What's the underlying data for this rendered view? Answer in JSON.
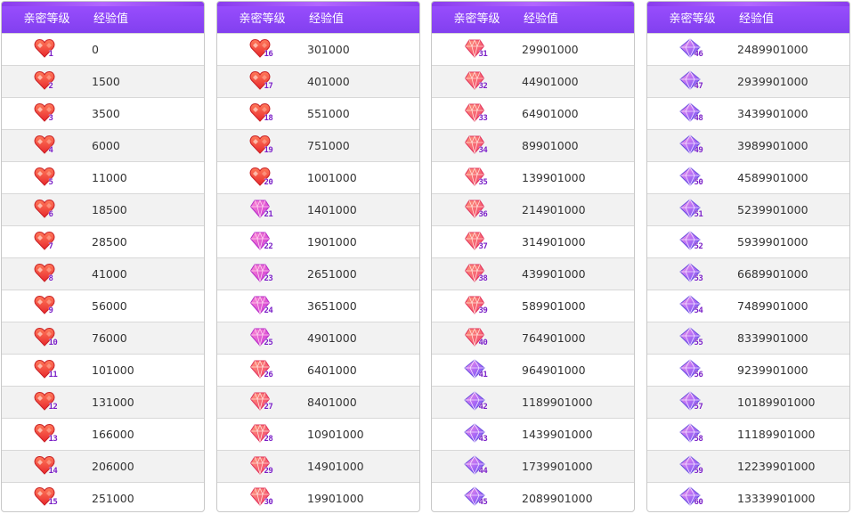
{
  "headers": {
    "level": "亲密等级",
    "exp": "经验值"
  },
  "colors": {
    "header": "#8a44f5",
    "heart_red": "#f2473e",
    "heart_pink": "#f04fb6",
    "heart_purple": "#9a5cf0",
    "level_text": "#7a1fc7"
  },
  "tables": [
    {
      "rows": [
        {
          "level": "1",
          "exp": "0",
          "icon": "heart-red-icon"
        },
        {
          "level": "2",
          "exp": "1500",
          "icon": "heart-red-icon"
        },
        {
          "level": "3",
          "exp": "3500",
          "icon": "heart-red-icon"
        },
        {
          "level": "4",
          "exp": "6000",
          "icon": "heart-red-icon"
        },
        {
          "level": "5",
          "exp": "11000",
          "icon": "heart-red-icon"
        },
        {
          "level": "6",
          "exp": "18500",
          "icon": "heart-red-icon"
        },
        {
          "level": "7",
          "exp": "28500",
          "icon": "heart-red-icon"
        },
        {
          "level": "8",
          "exp": "41000",
          "icon": "heart-red-icon"
        },
        {
          "level": "9",
          "exp": "56000",
          "icon": "heart-red-icon"
        },
        {
          "level": "10",
          "exp": "76000",
          "icon": "heart-red-icon"
        },
        {
          "level": "11",
          "exp": "101000",
          "icon": "heart-red-icon"
        },
        {
          "level": "12",
          "exp": "131000",
          "icon": "heart-red-icon"
        },
        {
          "level": "13",
          "exp": "166000",
          "icon": "heart-red-icon"
        },
        {
          "level": "14",
          "exp": "206000",
          "icon": "heart-red-icon"
        },
        {
          "level": "15",
          "exp": "251000",
          "icon": "heart-red-icon"
        }
      ]
    },
    {
      "rows": [
        {
          "level": "16",
          "exp": "301000",
          "icon": "heart-red-icon"
        },
        {
          "level": "17",
          "exp": "401000",
          "icon": "heart-red-icon"
        },
        {
          "level": "18",
          "exp": "551000",
          "icon": "heart-red-icon"
        },
        {
          "level": "19",
          "exp": "751000",
          "icon": "heart-red-icon"
        },
        {
          "level": "20",
          "exp": "1001000",
          "icon": "heart-red-icon"
        },
        {
          "level": "21",
          "exp": "1401000",
          "icon": "gem-pink-icon"
        },
        {
          "level": "22",
          "exp": "1901000",
          "icon": "gem-pink-icon"
        },
        {
          "level": "23",
          "exp": "2651000",
          "icon": "gem-pink-icon"
        },
        {
          "level": "24",
          "exp": "3651000",
          "icon": "gem-pink-icon"
        },
        {
          "level": "25",
          "exp": "4901000",
          "icon": "gem-pink-icon"
        },
        {
          "level": "26",
          "exp": "6401000",
          "icon": "gem-red-icon"
        },
        {
          "level": "27",
          "exp": "8401000",
          "icon": "gem-red-icon"
        },
        {
          "level": "28",
          "exp": "10901000",
          "icon": "gem-red-icon"
        },
        {
          "level": "29",
          "exp": "14901000",
          "icon": "gem-red-icon"
        },
        {
          "level": "30",
          "exp": "19901000",
          "icon": "gem-red-icon"
        }
      ]
    },
    {
      "rows": [
        {
          "level": "31",
          "exp": "29901000",
          "icon": "gem-red-icon"
        },
        {
          "level": "32",
          "exp": "44901000",
          "icon": "gem-red-icon"
        },
        {
          "level": "33",
          "exp": "64901000",
          "icon": "gem-red-icon"
        },
        {
          "level": "34",
          "exp": "89901000",
          "icon": "gem-red-icon"
        },
        {
          "level": "35",
          "exp": "139901000",
          "icon": "gem-red-icon"
        },
        {
          "level": "36",
          "exp": "214901000",
          "icon": "gem-red-icon"
        },
        {
          "level": "37",
          "exp": "314901000",
          "icon": "gem-red-icon"
        },
        {
          "level": "38",
          "exp": "439901000",
          "icon": "gem-red-icon"
        },
        {
          "level": "39",
          "exp": "589901000",
          "icon": "gem-red-icon"
        },
        {
          "level": "40",
          "exp": "764901000",
          "icon": "gem-red-icon"
        },
        {
          "level": "41",
          "exp": "964901000",
          "icon": "gem-purple-icon"
        },
        {
          "level": "42",
          "exp": "1189901000",
          "icon": "gem-purple-icon"
        },
        {
          "level": "43",
          "exp": "1439901000",
          "icon": "gem-purple-icon"
        },
        {
          "level": "44",
          "exp": "1739901000",
          "icon": "gem-purple-icon"
        },
        {
          "level": "45",
          "exp": "2089901000",
          "icon": "gem-purple-icon"
        }
      ]
    },
    {
      "rows": [
        {
          "level": "46",
          "exp": "2489901000",
          "icon": "gem-purple-icon"
        },
        {
          "level": "47",
          "exp": "2939901000",
          "icon": "gem-purple-icon"
        },
        {
          "level": "48",
          "exp": "3439901000",
          "icon": "gem-purple-icon"
        },
        {
          "level": "49",
          "exp": "3989901000",
          "icon": "gem-purple-icon"
        },
        {
          "level": "50",
          "exp": "4589901000",
          "icon": "gem-purple-icon"
        },
        {
          "level": "51",
          "exp": "5239901000",
          "icon": "gem-purple-icon"
        },
        {
          "level": "52",
          "exp": "5939901000",
          "icon": "gem-purple-icon"
        },
        {
          "level": "53",
          "exp": "6689901000",
          "icon": "gem-purple-icon"
        },
        {
          "level": "54",
          "exp": "7489901000",
          "icon": "gem-purple-icon"
        },
        {
          "level": "55",
          "exp": "8339901000",
          "icon": "gem-purple-icon"
        },
        {
          "level": "56",
          "exp": "9239901000",
          "icon": "gem-purple-icon"
        },
        {
          "level": "57",
          "exp": "10189901000",
          "icon": "gem-purple-icon"
        },
        {
          "level": "58",
          "exp": "11189901000",
          "icon": "gem-purple-icon"
        },
        {
          "level": "59",
          "exp": "12239901000",
          "icon": "gem-purple-icon"
        },
        {
          "level": "60",
          "exp": "13339901000",
          "icon": "gem-purple-icon"
        }
      ]
    }
  ]
}
